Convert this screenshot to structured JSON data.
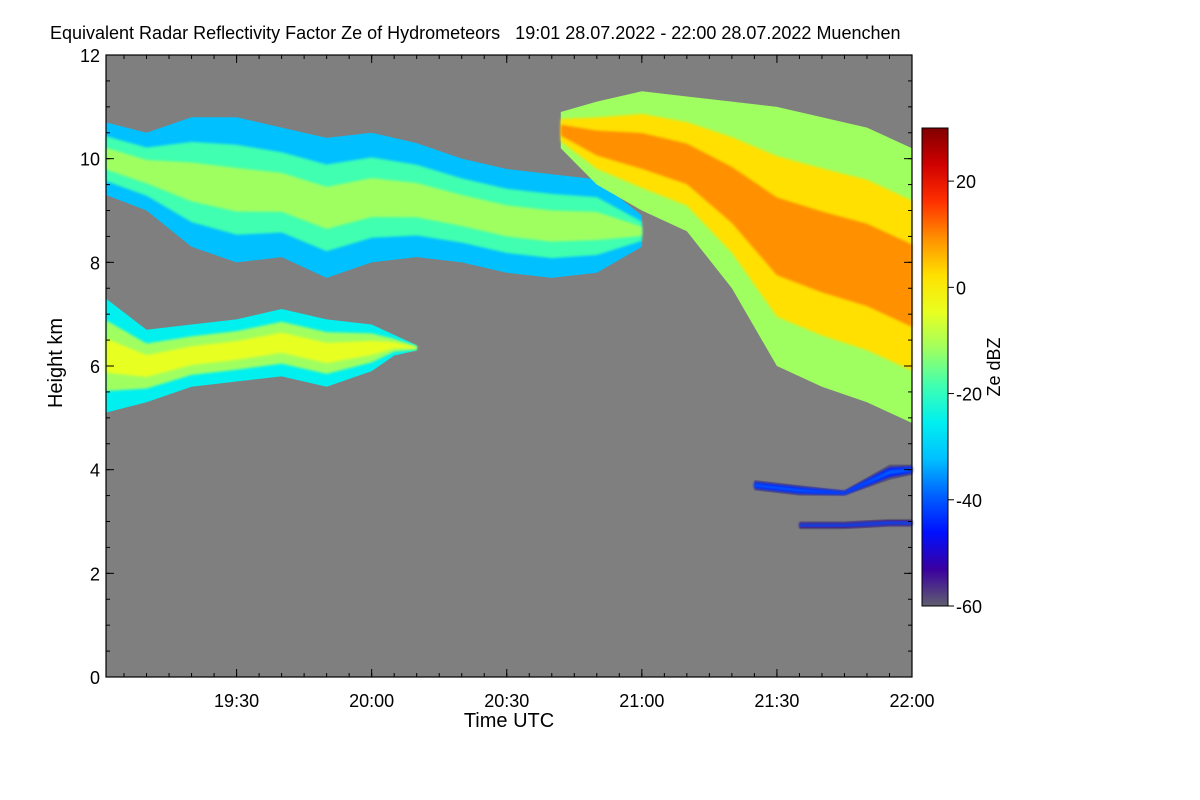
{
  "chart_data": {
    "type": "heatmap",
    "title": "Equivalent Radar Reflectivity Factor Ze of Hydrometeors   19:01 28.07.2022 - 22:00 28.07.2022 Muenchen",
    "xlabel": "Time UTC",
    "ylabel": "Height km",
    "xlim": [
      "19:01",
      "22:00"
    ],
    "ylim": [
      0,
      12
    ],
    "x_ticks": [
      "19:30",
      "20:00",
      "20:30",
      "21:00",
      "21:30",
      "22:00"
    ],
    "y_ticks": [
      0,
      2,
      4,
      6,
      8,
      10,
      12
    ],
    "colorbar": {
      "label": "Ze dBZ",
      "range": [
        -60,
        30
      ],
      "ticks": [
        20,
        0,
        -20,
        -40,
        -60
      ],
      "colormap": [
        "#5f5f6f",
        "#3a00a0",
        "#0010ff",
        "#0060ff",
        "#00c0ff",
        "#00f0f0",
        "#40ffb0",
        "#a0ff60",
        "#e8ff20",
        "#ffe000",
        "#ff9000",
        "#ff3000",
        "#d00000",
        "#800000"
      ]
    },
    "background_color": "#7f7f7f",
    "cloud_layers": [
      {
        "x": [
          "19:01",
          "19:10",
          "19:20",
          "19:30",
          "19:40",
          "19:50",
          "20:00",
          "20:10",
          "20:20",
          "20:30",
          "20:40",
          "20:50",
          "21:00"
        ],
        "top_km": [
          10.7,
          10.5,
          10.8,
          10.8,
          10.6,
          10.4,
          10.5,
          10.3,
          10.0,
          9.8,
          9.7,
          9.6,
          8.9
        ],
        "base_km": [
          9.3,
          9.0,
          8.3,
          8.0,
          8.1,
          7.7,
          8.0,
          8.1,
          8.0,
          7.8,
          7.7,
          7.8,
          8.3
        ],
        "core_dbz": -10
      },
      {
        "x": [
          "20:42",
          "20:50",
          "21:00",
          "21:10",
          "21:20",
          "21:30",
          "21:40",
          "21:50",
          "22:00"
        ],
        "top_km": [
          10.9,
          11.1,
          11.3,
          11.2,
          11.1,
          11.0,
          10.8,
          10.6,
          10.2
        ],
        "base_km": [
          10.2,
          9.5,
          9.0,
          8.6,
          7.5,
          6.0,
          5.6,
          5.3,
          4.9
        ],
        "core_dbz": 8
      },
      {
        "x": [
          "19:01",
          "19:10",
          "19:20",
          "19:30",
          "19:40",
          "19:50",
          "20:00",
          "20:05",
          "20:10"
        ],
        "top_km": [
          7.3,
          6.7,
          6.8,
          6.9,
          7.1,
          6.9,
          6.8,
          6.6,
          6.4
        ],
        "base_km": [
          5.1,
          5.3,
          5.6,
          5.7,
          5.8,
          5.6,
          5.9,
          6.2,
          6.3
        ],
        "core_dbz": -6
      },
      {
        "x": [
          "21:25",
          "21:35",
          "21:45",
          "21:55",
          "22:00"
        ],
        "top_km": [
          3.8,
          3.7,
          3.6,
          4.1,
          4.1
        ],
        "base_km": [
          3.6,
          3.5,
          3.5,
          3.8,
          3.9
        ],
        "core_dbz": -40
      },
      {
        "x": [
          "21:35",
          "21:45",
          "21:55",
          "22:00"
        ],
        "top_km": [
          3.0,
          3.0,
          3.05,
          3.05
        ],
        "base_km": [
          2.85,
          2.85,
          2.9,
          2.9
        ],
        "core_dbz": -42
      }
    ]
  }
}
